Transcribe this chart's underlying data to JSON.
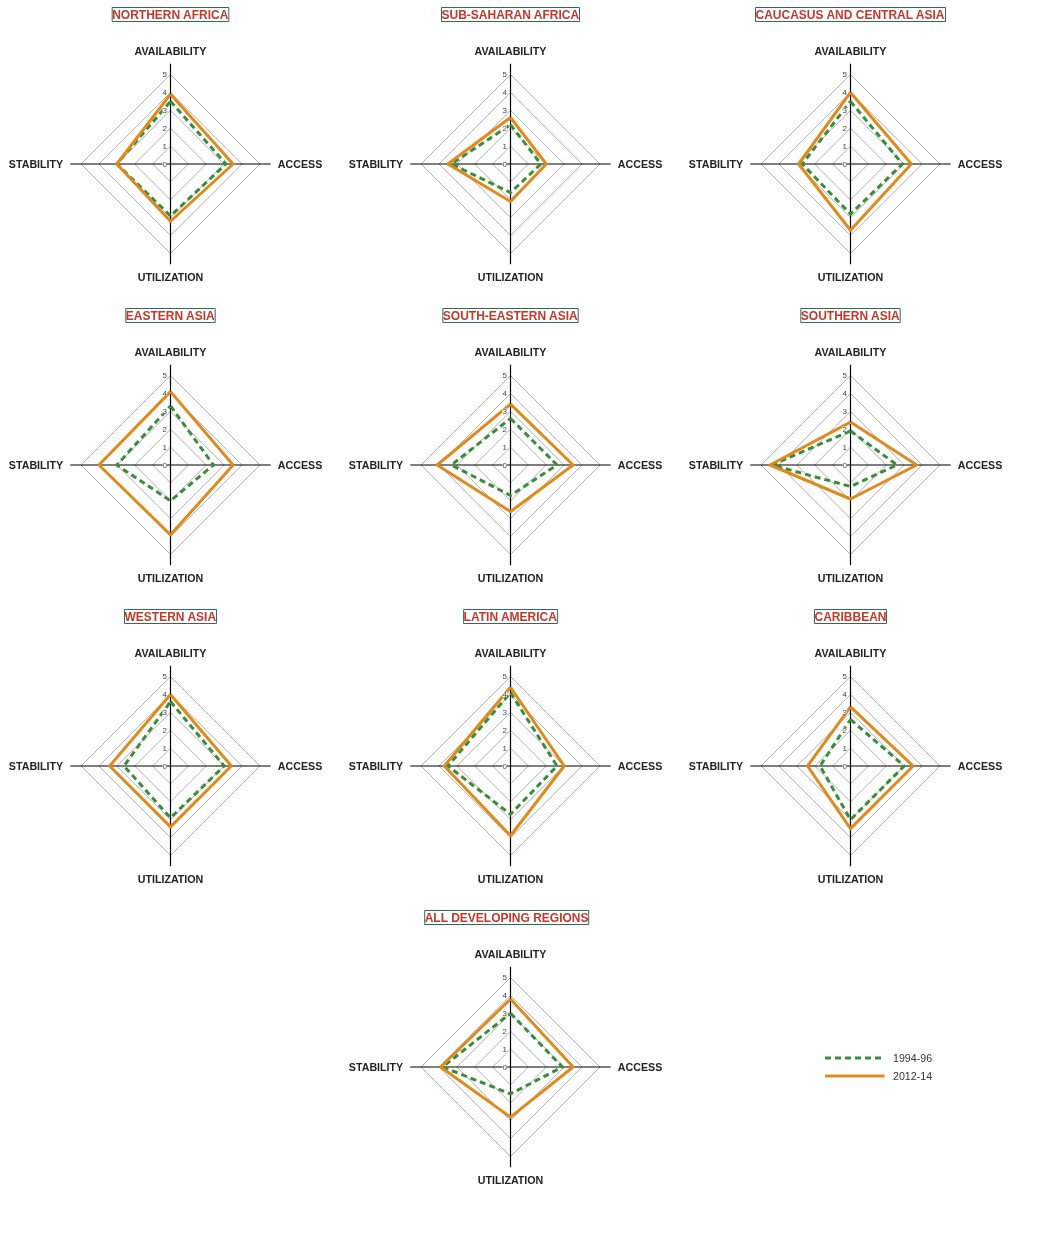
{
  "chart_data": [
    {
      "type": "radar",
      "title": "NORTHERN AFRICA",
      "categories": [
        "AVAILABILITY",
        "ACCESS",
        "UTILIZATION",
        "STABILITY"
      ],
      "ylim": [
        0,
        5
      ],
      "yticks": [
        0,
        1,
        2,
        3,
        4,
        5
      ],
      "series": [
        {
          "color": "#3a8d3a",
          "line_style": "dashed",
          "values": [
            3.5,
            3.1,
            2.9,
            3.0
          ]
        },
        {
          "color": "#e08a1e",
          "line_style": "solid",
          "values": [
            3.9,
            3.5,
            3.2,
            3.0
          ]
        }
      ]
    },
    {
      "type": "radar",
      "title": "SUB-SAHARAN AFRICA",
      "categories": [
        "AVAILABILITY",
        "ACCESS",
        "UTILIZATION",
        "STABILITY"
      ],
      "ylim": [
        0,
        5
      ],
      "yticks": [
        0,
        1,
        2,
        3,
        4,
        5
      ],
      "series": [
        {
          "color": "#3a8d3a",
          "line_style": "dashed",
          "values": [
            2.2,
            1.7,
            1.6,
            3.3
          ]
        },
        {
          "color": "#e08a1e",
          "line_style": "solid",
          "values": [
            2.6,
            2.0,
            2.1,
            3.5
          ]
        }
      ]
    },
    {
      "type": "radar",
      "title": "CAUCASUS AND CENTRAL ASIA",
      "categories": [
        "AVAILABILITY",
        "ACCESS",
        "UTILIZATION",
        "STABILITY"
      ],
      "ylim": [
        0,
        5
      ],
      "yticks": [
        0,
        1,
        2,
        3,
        4,
        5
      ],
      "series": [
        {
          "color": "#3a8d3a",
          "line_style": "dashed",
          "values": [
            3.5,
            2.9,
            2.8,
            2.7
          ]
        },
        {
          "color": "#e08a1e",
          "line_style": "solid",
          "values": [
            4.0,
            3.4,
            3.7,
            2.9
          ]
        }
      ]
    },
    {
      "type": "radar",
      "title": "EASTERN ASIA",
      "categories": [
        "AVAILABILITY",
        "ACCESS",
        "UTILIZATION",
        "STABILITY"
      ],
      "ylim": [
        0,
        5
      ],
      "yticks": [
        0,
        1,
        2,
        3,
        4,
        5
      ],
      "series": [
        {
          "color": "#3a8d3a",
          "line_style": "dashed",
          "values": [
            3.3,
            2.4,
            2.0,
            3.0
          ]
        },
        {
          "color": "#e08a1e",
          "line_style": "solid",
          "values": [
            4.1,
            3.5,
            3.9,
            4.0
          ]
        }
      ]
    },
    {
      "type": "radar",
      "title": "SOUTH-EASTERN ASIA",
      "categories": [
        "AVAILABILITY",
        "ACCESS",
        "UTILIZATION",
        "STABILITY"
      ],
      "ylim": [
        0,
        5
      ],
      "yticks": [
        0,
        1,
        2,
        3,
        4,
        5
      ],
      "series": [
        {
          "color": "#3a8d3a",
          "line_style": "dashed",
          "values": [
            2.6,
            2.6,
            1.7,
            3.3
          ]
        },
        {
          "color": "#e08a1e",
          "line_style": "solid",
          "values": [
            3.4,
            3.5,
            2.6,
            4.1
          ]
        }
      ]
    },
    {
      "type": "radar",
      "title": "SOUTHERN ASIA",
      "categories": [
        "AVAILABILITY",
        "ACCESS",
        "UTILIZATION",
        "STABILITY"
      ],
      "ylim": [
        0,
        5
      ],
      "yticks": [
        0,
        1,
        2,
        3,
        4,
        5
      ],
      "series": [
        {
          "color": "#3a8d3a",
          "line_style": "dashed",
          "values": [
            1.9,
            2.6,
            1.2,
            4.4
          ]
        },
        {
          "color": "#e08a1e",
          "line_style": "solid",
          "values": [
            2.4,
            3.7,
            1.9,
            4.5
          ]
        }
      ]
    },
    {
      "type": "radar",
      "title": "WESTERN ASIA",
      "categories": [
        "AVAILABILITY",
        "ACCESS",
        "UTILIZATION",
        "STABILITY"
      ],
      "ylim": [
        0,
        5
      ],
      "yticks": [
        0,
        1,
        2,
        3,
        4,
        5
      ],
      "series": [
        {
          "color": "#3a8d3a",
          "line_style": "dashed",
          "values": [
            3.6,
            3.0,
            2.9,
            2.6
          ]
        },
        {
          "color": "#e08a1e",
          "line_style": "solid",
          "values": [
            4.0,
            3.4,
            3.4,
            3.4
          ]
        }
      ]
    },
    {
      "type": "radar",
      "title": "LATIN AMERICA",
      "categories": [
        "AVAILABILITY",
        "ACCESS",
        "UTILIZATION",
        "STABILITY"
      ],
      "ylim": [
        0,
        5
      ],
      "yticks": [
        0,
        1,
        2,
        3,
        4,
        5
      ],
      "series": [
        {
          "color": "#3a8d3a",
          "line_style": "dashed",
          "values": [
            4.1,
            2.6,
            2.7,
            3.5
          ]
        },
        {
          "color": "#e08a1e",
          "line_style": "solid",
          "values": [
            4.4,
            3.0,
            3.9,
            3.7
          ]
        }
      ]
    },
    {
      "type": "radar",
      "title": "CARIBBEAN",
      "categories": [
        "AVAILABILITY",
        "ACCESS",
        "UTILIZATION",
        "STABILITY"
      ],
      "ylim": [
        0,
        5
      ],
      "yticks": [
        0,
        1,
        2,
        3,
        4,
        5
      ],
      "series": [
        {
          "color": "#3a8d3a",
          "line_style": "dashed",
          "values": [
            2.6,
            3.0,
            3.0,
            1.7
          ]
        },
        {
          "color": "#e08a1e",
          "line_style": "solid",
          "values": [
            3.3,
            3.5,
            3.5,
            2.4
          ]
        }
      ]
    },
    {
      "type": "radar",
      "title": "ALL DEVELOPING REGIONS",
      "categories": [
        "AVAILABILITY",
        "ACCESS",
        "UTILIZATION",
        "STABILITY"
      ],
      "ylim": [
        0,
        5
      ],
      "yticks": [
        0,
        1,
        2,
        3,
        4,
        5
      ],
      "legend": "right",
      "series": [
        {
          "name": "1994-96",
          "color": "#3a8d3a",
          "line_style": "dashed",
          "values": [
            3.0,
            2.9,
            1.5,
            3.8
          ]
        },
        {
          "name": "2012-14",
          "color": "#e08a1e",
          "line_style": "solid",
          "values": [
            3.8,
            3.5,
            2.8,
            3.9
          ]
        }
      ]
    }
  ]
}
